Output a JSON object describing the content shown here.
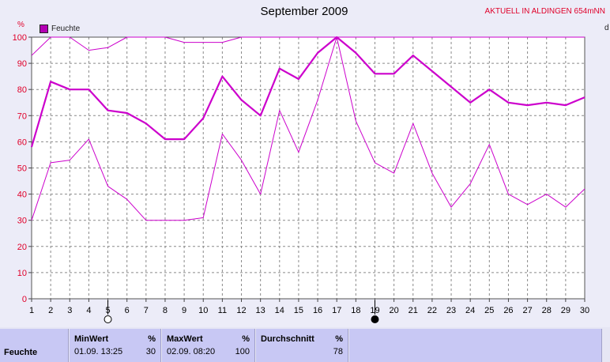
{
  "header": {
    "title": "September 2009",
    "location": "AKTUELL IN ALDINGEN 654mNN",
    "unit_left": "%",
    "unit_right": "d"
  },
  "legend": {
    "label": "Feuchte",
    "color": "#b400b4"
  },
  "chart_data": {
    "type": "line",
    "title": "September 2009",
    "ylabel": "%",
    "ylim": [
      0,
      100
    ],
    "yticks": [
      0,
      10,
      20,
      30,
      40,
      50,
      60,
      70,
      80,
      90,
      100
    ],
    "x": [
      1,
      2,
      3,
      4,
      5,
      6,
      7,
      8,
      9,
      10,
      11,
      12,
      13,
      14,
      15,
      16,
      17,
      18,
      19,
      20,
      21,
      22,
      23,
      24,
      25,
      26,
      27,
      28,
      29,
      30
    ],
    "grid": true,
    "legend_position": "top-left",
    "series": [
      {
        "name": "Feuchte",
        "role": "max",
        "color": "#cc00cc",
        "values": [
          93,
          100,
          100,
          95,
          96,
          100,
          100,
          100,
          98,
          98,
          98,
          100,
          100,
          100,
          100,
          100,
          100,
          100,
          100,
          100,
          100,
          100,
          100,
          100,
          100,
          100,
          100,
          100,
          100,
          100
        ]
      },
      {
        "name": "Feuchte",
        "role": "avg",
        "color": "#cc00cc",
        "values": [
          58,
          83,
          80,
          80,
          72,
          71,
          67,
          61,
          61,
          69,
          85,
          76,
          70,
          88,
          84,
          94,
          100,
          94,
          86,
          86,
          93,
          87,
          81,
          75,
          80,
          75,
          74,
          75,
          74,
          77
        ]
      },
      {
        "name": "Feuchte",
        "role": "min",
        "color": "#cc00cc",
        "values": [
          30,
          52,
          53,
          61,
          43,
          38,
          30,
          30,
          30,
          31,
          63,
          53,
          40,
          72,
          56,
          76,
          100,
          68,
          52,
          48,
          67,
          48,
          35,
          44,
          59,
          40,
          36,
          40,
          35,
          42
        ]
      }
    ],
    "markers": [
      {
        "day": 5,
        "symbol": "open-circle"
      },
      {
        "day": 19,
        "symbol": "filled-circle"
      }
    ]
  },
  "stats": {
    "row_label": "Feuchte",
    "min": {
      "header": "MinWert",
      "unit": "%",
      "datetime": "01.09.  13:25",
      "value": "30"
    },
    "max": {
      "header": "MaxWert",
      "unit": "%",
      "datetime": "02.09.  08:20",
      "value": "100"
    },
    "avg": {
      "header": "Durchschnitt",
      "unit": "%",
      "value": "78"
    }
  }
}
